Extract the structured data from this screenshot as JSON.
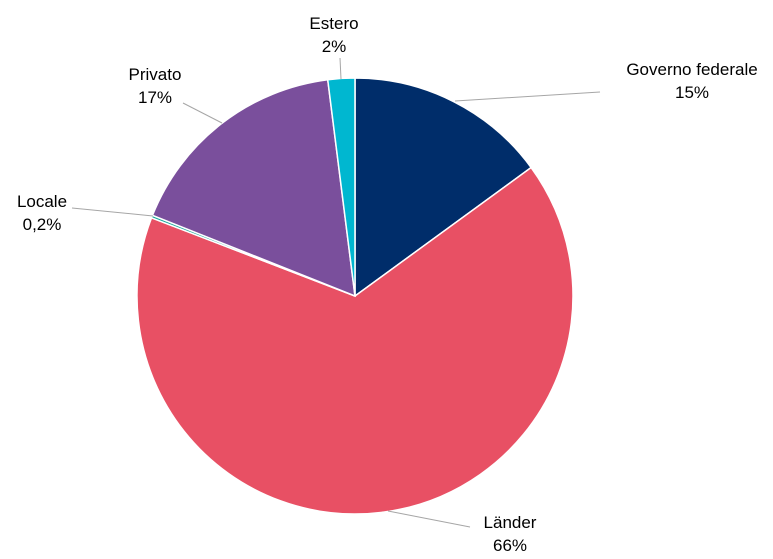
{
  "chart_data": {
    "type": "pie",
    "title": "",
    "start_angle_deg": 0,
    "direction": "clockwise",
    "slices": [
      {
        "name": "Governo federale",
        "value": 15,
        "value_label": "15%",
        "color": "#002D6A"
      },
      {
        "name": "Länder",
        "value": 66,
        "value_label": "66%",
        "color": "#E85064"
      },
      {
        "name": "Locale",
        "value": 0.2,
        "value_label": "0,2%",
        "color": "#17A69A"
      },
      {
        "name": "Privato",
        "value": 17,
        "value_label": "17%",
        "color": "#7A4F9C"
      },
      {
        "name": "Estero",
        "value": 2,
        "value_label": "2%",
        "color": "#00B7D0"
      }
    ],
    "legend": "none",
    "label_position": "outside-with-leader-lines"
  }
}
